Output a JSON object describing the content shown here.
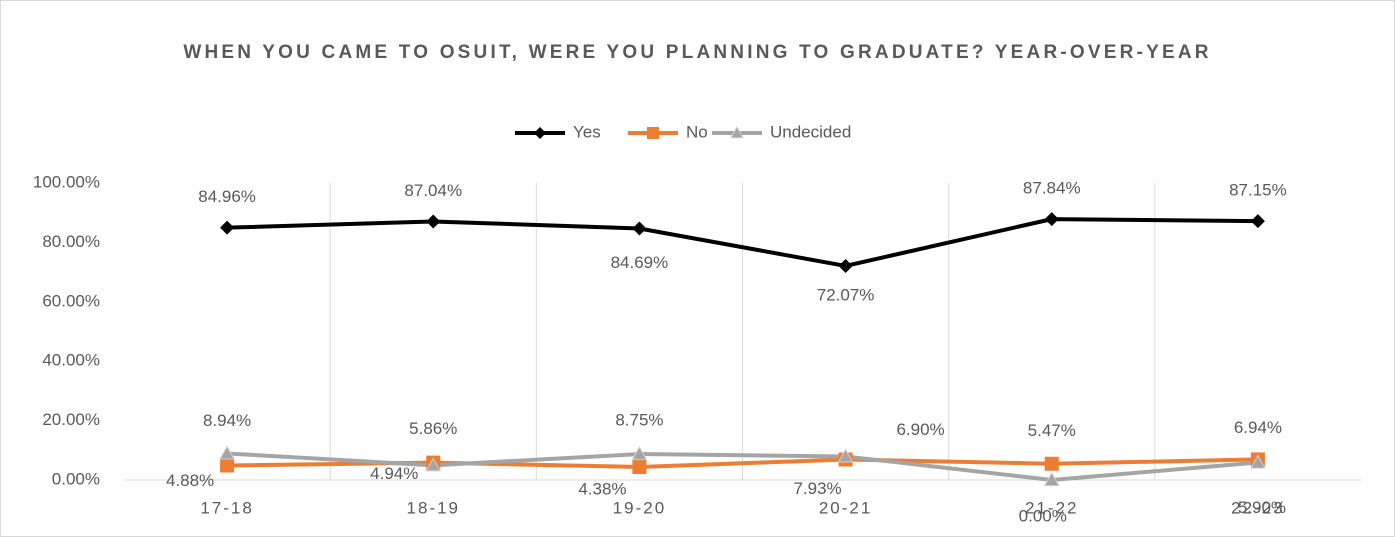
{
  "chart_data": {
    "type": "line",
    "title": "WHEN YOU CAME TO OSUIT, WERE YOU PLANNING TO GRADUATE? YEAR-OVER-YEAR",
    "categories": [
      "17-18",
      "18-19",
      "19-20",
      "20-21",
      "21-22",
      "22-23"
    ],
    "series": [
      {
        "name": "Yes",
        "color": "#000000",
        "marker": "diamond",
        "values": [
          84.96,
          87.04,
          84.69,
          72.07,
          87.84,
          87.15
        ],
        "value_labels": [
          "84.96%",
          "87.04%",
          "84.69%",
          "72.07%",
          "87.84%",
          "87.15%"
        ]
      },
      {
        "name": "No",
        "color": "#ed7d31",
        "marker": "square",
        "values": [
          4.88,
          5.86,
          4.38,
          6.9,
          5.47,
          6.94
        ],
        "value_labels": [
          "4.88%",
          "5.86%",
          "4.38%",
          "6.90%",
          "5.47%",
          "6.94%"
        ]
      },
      {
        "name": "Undecided",
        "color": "#a5a5a5",
        "marker": "triangle",
        "values": [
          8.94,
          4.94,
          8.75,
          7.93,
          0.0,
          5.9
        ],
        "value_labels": [
          "8.94%",
          "4.94%",
          "8.75%",
          "7.93%",
          "0.00%",
          "5.90%"
        ]
      }
    ],
    "ylim": [
      0,
      100
    ],
    "yticks": [
      {
        "value": 0,
        "label": "0.00%"
      },
      {
        "value": 20,
        "label": "20.00%"
      },
      {
        "value": 40,
        "label": "40.00%"
      },
      {
        "value": 60,
        "label": "60.00%"
      },
      {
        "value": 80,
        "label": "80.00%"
      },
      {
        "value": 100,
        "label": "100.00%"
      }
    ],
    "grid": "vertical",
    "legend": "top"
  }
}
